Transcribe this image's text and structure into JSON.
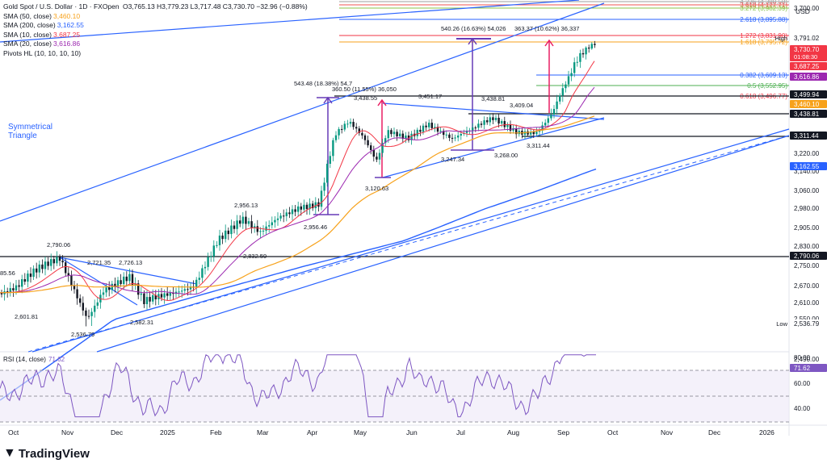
{
  "header": {
    "title": "Gold Spot / U.S. Dollar · 1D · FXOpen",
    "ohlc": "O3,765.13 H3,779.23 L3,717.48 C3,730.70 −32.96 (−0.88%)",
    "indicators": [
      {
        "label": "SMA (50, close)",
        "value": "3,460.10",
        "color": "#f7a21b"
      },
      {
        "label": "SMA (200, close)",
        "value": "3,162.55",
        "color": "#2962ff"
      },
      {
        "label": "SMA (10, close)",
        "value": "3,687.25",
        "color": "#f23645"
      },
      {
        "label": "SMA (20, close)",
        "value": "3,616.86",
        "color": "#9c27b0"
      },
      {
        "label": "Pivots HL (10, 10, 10, 10)",
        "value": "",
        "color": "#131722"
      }
    ]
  },
  "currency": "USD",
  "logo_text": "TradingView",
  "chart_data": {
    "type": "candlestick",
    "x_axis_labels": [
      "Oct",
      "Nov",
      "Dec",
      "2025",
      "Feb",
      "Mar",
      "Apr",
      "May",
      "Jun",
      "Jul",
      "Aug",
      "Sep",
      "Oct",
      "Nov",
      "Dec",
      "2026"
    ],
    "y_axis_labels": [
      "3,700.00",
      "3,220.00",
      "3,140.00",
      "3,060.00",
      "2,980.00",
      "2,905.00",
      "2,830.00",
      "2,750.00",
      "2,670.00",
      "2,610.00",
      "2,550.00",
      "2,490.00"
    ],
    "price_tags": [
      {
        "label": "3,791.02",
        "value": 3791.02,
        "bg": "#ffffff",
        "fg": "#131722",
        "note": "High"
      },
      {
        "label": "3,730.70",
        "value": 3730.7,
        "bg": "#f23645",
        "fg": "#ffffff",
        "sub": "01:08:30"
      },
      {
        "label": "3,687.25",
        "value": 3687.25,
        "bg": "#f23645",
        "fg": "#ffffff"
      },
      {
        "label": "3,616.86",
        "value": 3616.86,
        "bg": "#9c27b0",
        "fg": "#ffffff"
      },
      {
        "label": "3,499.94",
        "value": 3499.94,
        "bg": "#131722",
        "fg": "#ffffff"
      },
      {
        "label": "3,460.10",
        "value": 3460.1,
        "bg": "#f7a21b",
        "fg": "#ffffff"
      },
      {
        "label": "3,438.81",
        "value": 3438.81,
        "bg": "#131722",
        "fg": "#ffffff"
      },
      {
        "label": "3,311.44",
        "value": 3311.44,
        "bg": "#131722",
        "fg": "#ffffff"
      },
      {
        "label": "3,162.55",
        "value": 3162.55,
        "bg": "#2962ff",
        "fg": "#ffffff"
      },
      {
        "label": "2,790.06",
        "value": 2790.06,
        "bg": "#131722",
        "fg": "#ffffff"
      },
      {
        "label": "2,536.79",
        "value": 2536.79,
        "bg": "#ffffff",
        "fg": "#131722",
        "note": "Low"
      }
    ],
    "fib_levels": [
      {
        "label": "4.236 (4,388.58)",
        "value": 4388.58,
        "color": "#9e9e9e"
      },
      {
        "label": "3.618 (4,127.71)",
        "value": 4127.71,
        "color": "#ef5350"
      },
      {
        "label": "3.272 (3,982.39)",
        "value": 3982.39,
        "color": "#8bc34a"
      },
      {
        "label": "2.618 (3,895.88)",
        "value": 3895.88,
        "color": "#2962ff"
      },
      {
        "label": "1.272 (3,831.90)",
        "value": 3831.9,
        "color": "#f23645"
      },
      {
        "label": "1.618 (3,795.72)",
        "value": 3795.72,
        "color": "#f7a21b"
      },
      {
        "label": "0.382 (3,609.13)",
        "value": 3609.13,
        "color": "#2962ff"
      },
      {
        "label": "0.5 (3,552.95)",
        "value": 3552.95,
        "color": "#4caf50"
      },
      {
        "label": "0.618 (3,496.77)",
        "value": 3496.77,
        "color": "#f23645"
      }
    ],
    "pivot_labels": [
      {
        "label": "3,451.17"
      },
      {
        "label": "3,438.81"
      },
      {
        "label": "3,409.04"
      },
      {
        "label": "3,438.55"
      },
      {
        "label": "3,247.34"
      },
      {
        "label": "3,268.00"
      },
      {
        "label": "3,311.44"
      },
      {
        "label": "3,120.63"
      },
      {
        "label": "2,956.13"
      },
      {
        "label": "2,956.46"
      },
      {
        "label": "2,832.59"
      },
      {
        "label": "2,790.06"
      },
      {
        "label": "2,721.35"
      },
      {
        "label": "2,726.13"
      },
      {
        "label": "2,601.81"
      },
      {
        "label": "2,582.31"
      },
      {
        "label": "2,536.79"
      },
      {
        "label": "85.56"
      }
    ],
    "measure_labels": [
      {
        "label": "543.48 (18.38%) 54,7"
      },
      {
        "label": "360.50 (11.55%) 36,050"
      },
      {
        "label": "540.26 (16.63%) 54,026"
      },
      {
        "label": "363.37 (10.62%) 36,337"
      }
    ],
    "annotation": "Symmetrical Triangle",
    "rsi": {
      "label": "RSI (14, close)",
      "value": "71.62",
      "y_axis_labels": [
        "80.00",
        "60.00",
        "40.00"
      ],
      "upper": 70,
      "mid": 50,
      "lower": 30
    }
  }
}
